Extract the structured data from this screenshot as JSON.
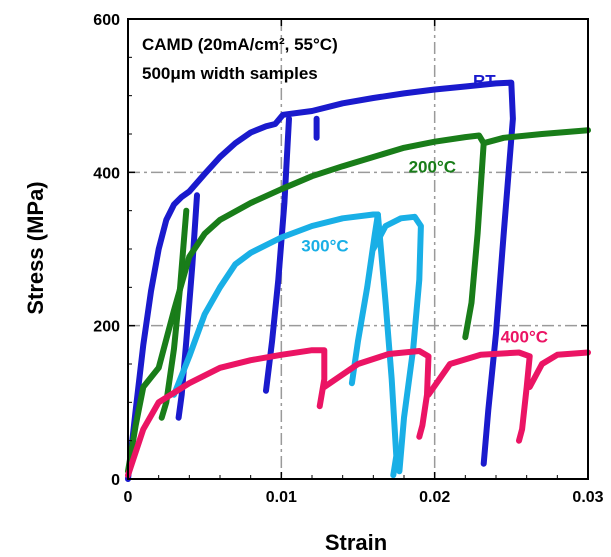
{
  "chart_data": {
    "type": "line",
    "xlabel": "Strain",
    "ylabel": "Stress (MPa)",
    "xlim": [
      0,
      0.03
    ],
    "ylim": [
      0,
      600
    ],
    "x_ticks": [
      "0",
      "0.01",
      "0.02",
      "0.03"
    ],
    "y_ticks": [
      "0",
      "200",
      "400",
      "600"
    ],
    "grid": "dashed gray at x=0.01, 0.02 and y=200, 400",
    "annotations": [
      "CAMD (20mA/cm², 55°C)",
      "500μm width samples"
    ],
    "series": [
      {
        "name": "RT",
        "color": "#1a1acd",
        "segments": [
          [
            [
              0.0,
              0
            ],
            [
              0.0005,
              90
            ],
            [
              0.001,
              175
            ],
            [
              0.0015,
              245
            ],
            [
              0.002,
              300
            ],
            [
              0.0025,
              338
            ],
            [
              0.003,
              358
            ],
            [
              0.0035,
              368
            ],
            [
              0.004,
              375
            ],
            [
              0.005,
              398
            ],
            [
              0.006,
              420
            ],
            [
              0.007,
              438
            ],
            [
              0.008,
              452
            ],
            [
              0.009,
              460
            ],
            [
              0.0096,
              463
            ],
            [
              0.0101,
              475
            ],
            [
              0.012,
              480
            ],
            [
              0.014,
              490
            ],
            [
              0.016,
              497
            ],
            [
              0.018,
              503
            ],
            [
              0.02,
              508
            ],
            [
              0.022,
              512
            ],
            [
              0.024,
              516
            ],
            [
              0.025,
              517
            ],
            [
              0.0251,
              470
            ],
            [
              0.0245,
              320
            ],
            [
              0.024,
              190
            ],
            [
              0.0235,
              90
            ],
            [
              0.0232,
              20
            ]
          ],
          [
            [
              0.0045,
              370
            ],
            [
              0.0042,
              280
            ],
            [
              0.0038,
              180
            ],
            [
              0.0035,
              110
            ],
            [
              0.0033,
              80
            ]
          ],
          [
            [
              0.0105,
              470
            ],
            [
              0.0102,
              360
            ],
            [
              0.0098,
              260
            ],
            [
              0.0094,
              180
            ],
            [
              0.009,
              115
            ]
          ],
          [
            [
              0.0123,
              470
            ],
            [
              0.0123,
              445
            ]
          ]
        ]
      },
      {
        "name": "200°C",
        "color": "#197d19",
        "segments": [
          [
            [
              0.0,
              10
            ],
            [
              0.0005,
              70
            ],
            [
              0.001,
              120
            ],
            [
              0.002,
              145
            ],
            [
              0.003,
              220
            ],
            [
              0.004,
              290
            ],
            [
              0.005,
              320
            ],
            [
              0.006,
              338
            ],
            [
              0.008,
              360
            ],
            [
              0.01,
              378
            ],
            [
              0.012,
              395
            ],
            [
              0.014,
              408
            ],
            [
              0.016,
              420
            ],
            [
              0.018,
              432
            ],
            [
              0.02,
              440
            ],
            [
              0.022,
              446
            ],
            [
              0.0229,
              448
            ],
            [
              0.0232,
              438
            ],
            [
              0.0228,
              320
            ],
            [
              0.0224,
              230
            ],
            [
              0.022,
              185
            ]
          ],
          [
            [
              0.0038,
              350
            ],
            [
              0.0034,
              250
            ],
            [
              0.003,
              170
            ],
            [
              0.0025,
              100
            ],
            [
              0.0022,
              80
            ]
          ],
          [
            [
              0.0232,
              438
            ],
            [
              0.0245,
              445
            ],
            [
              0.027,
              450
            ],
            [
              0.03,
              455
            ]
          ]
        ]
      },
      {
        "name": "300°C",
        "color": "#19afe6",
        "segments": [
          [
            [
              0.003,
              110
            ],
            [
              0.004,
              160
            ],
            [
              0.005,
              215
            ],
            [
              0.006,
              250
            ],
            [
              0.007,
              280
            ],
            [
              0.008,
              295
            ],
            [
              0.01,
              315
            ],
            [
              0.012,
              330
            ],
            [
              0.014,
              340
            ],
            [
              0.016,
              345
            ],
            [
              0.0163,
              345
            ],
            [
              0.0161,
              320
            ],
            [
              0.0156,
              250
            ],
            [
              0.015,
              180
            ],
            [
              0.0146,
              125
            ]
          ],
          [
            [
              0.0163,
              345
            ],
            [
              0.0168,
              230
            ],
            [
              0.0172,
              130
            ],
            [
              0.0175,
              30
            ],
            [
              0.0173,
              5
            ]
          ],
          [
            [
              0.016,
              300
            ],
            [
              0.0168,
              330
            ],
            [
              0.0178,
              340
            ],
            [
              0.0187,
              342
            ],
            [
              0.0191,
              330
            ],
            [
              0.019,
              260
            ],
            [
              0.0186,
              170
            ],
            [
              0.018,
              80
            ],
            [
              0.0177,
              10
            ]
          ]
        ]
      },
      {
        "name": "400°C",
        "color": "#eb1464",
        "segments": [
          [
            [
              0.0,
              5
            ],
            [
              0.001,
              65
            ],
            [
              0.002,
              100
            ],
            [
              0.004,
              125
            ],
            [
              0.006,
              145
            ],
            [
              0.008,
              155
            ],
            [
              0.01,
              162
            ],
            [
              0.012,
              168
            ],
            [
              0.0128,
              168
            ],
            [
              0.0128,
              130
            ],
            [
              0.0125,
              95
            ]
          ],
          [
            [
              0.0128,
              120
            ],
            [
              0.015,
              150
            ],
            [
              0.017,
              163
            ],
            [
              0.019,
              167
            ],
            [
              0.0196,
              160
            ],
            [
              0.0195,
              110
            ],
            [
              0.0192,
              70
            ],
            [
              0.019,
              55
            ]
          ],
          [
            [
              0.0196,
              110
            ],
            [
              0.021,
              150
            ],
            [
              0.023,
              162
            ],
            [
              0.0255,
              165
            ],
            [
              0.0262,
              160
            ],
            [
              0.026,
              120
            ],
            [
              0.0257,
              65
            ],
            [
              0.0255,
              50
            ]
          ],
          [
            [
              0.0262,
              120
            ],
            [
              0.027,
              150
            ],
            [
              0.028,
              162
            ],
            [
              0.03,
              165
            ]
          ]
        ]
      }
    ],
    "curve_labels": [
      {
        "text": "RT",
        "color": "#1a1acd",
        "x": 0.0225,
        "y": 512
      },
      {
        "text": "200°C",
        "color": "#197d19",
        "x": 0.0183,
        "y": 400
      },
      {
        "text": "300°C",
        "color": "#19afe6",
        "x": 0.0113,
        "y": 297
      },
      {
        "text": "400°C",
        "color": "#eb1464",
        "x": 0.0243,
        "y": 178
      }
    ]
  }
}
